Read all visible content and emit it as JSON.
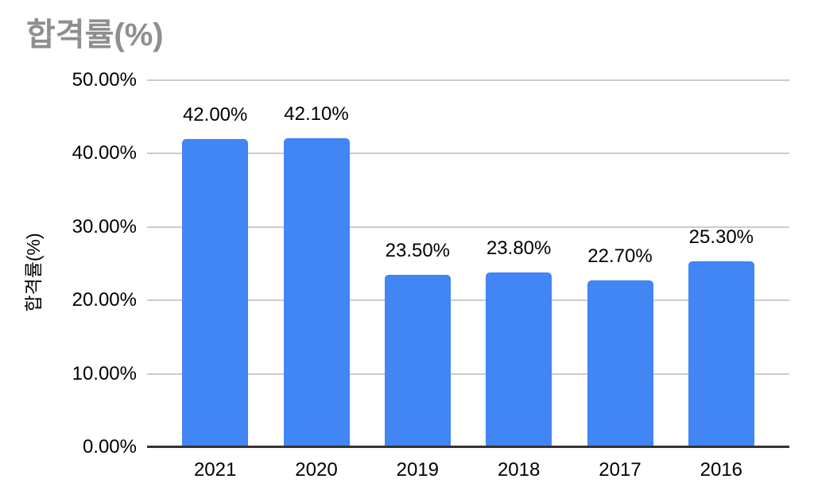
{
  "chart_data": {
    "type": "bar",
    "title": "합격률(%)",
    "xlabel": "",
    "ylabel": "합격률(%)",
    "categories": [
      "2021",
      "2020",
      "2019",
      "2018",
      "2017",
      "2016"
    ],
    "values": [
      42.0,
      42.1,
      23.5,
      23.8,
      22.7,
      25.3
    ],
    "value_labels": [
      "42.00%",
      "42.10%",
      "23.50%",
      "23.80%",
      "22.70%",
      "25.30%"
    ],
    "y_ticks": [
      {
        "value": 0,
        "label": "0.00%"
      },
      {
        "value": 10,
        "label": "10.00%"
      },
      {
        "value": 20,
        "label": "20.00%"
      },
      {
        "value": 30,
        "label": "30.00%"
      },
      {
        "value": 40,
        "label": "40.00%"
      },
      {
        "value": 50,
        "label": "50.00%"
      }
    ],
    "ylim": [
      0,
      50
    ],
    "grid": true,
    "legend": "none",
    "colors": {
      "bar": "#4285f4",
      "title": "#8f8f8f",
      "gridline": "#cccccc",
      "axis_line": "#333333",
      "label_text": "#000000",
      "background": "#ffffff"
    }
  }
}
